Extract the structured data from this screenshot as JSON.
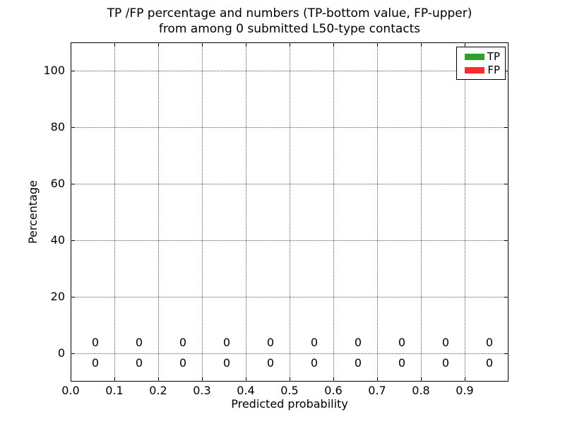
{
  "figure": {
    "background": "#ffffff",
    "axis_color": "#000000",
    "text_color": "#000000"
  },
  "chart_data": {
    "type": "bar",
    "title_lines": [
      "TP /FP percentage and numbers (TP-bottom value, FP-upper)",
      "from among 0 submitted L50-type contacts"
    ],
    "xlabel": "Predicted probability",
    "ylabel": "Percentage",
    "xlim": [
      0.0,
      1.0
    ],
    "ylim": [
      -10,
      110
    ],
    "xticks": [
      "0.0",
      "0.1",
      "0.2",
      "0.3",
      "0.4",
      "0.5",
      "0.6",
      "0.7",
      "0.8",
      "0.9"
    ],
    "yticks": [
      0,
      20,
      40,
      60,
      80,
      100
    ],
    "grid": true,
    "grid_style": "dotted",
    "grid_color": "#555555",
    "bin_centers": [
      0.05,
      0.15,
      0.25,
      0.35,
      0.45,
      0.55,
      0.65,
      0.75,
      0.85,
      0.95
    ],
    "series": [
      {
        "name": "TP",
        "color": "#2ca02c",
        "values": [
          0,
          0,
          0,
          0,
          0,
          0,
          0,
          0,
          0,
          0
        ],
        "label_row": "below-axis"
      },
      {
        "name": "FP",
        "color": "#fb2b2b",
        "values": [
          0,
          0,
          0,
          0,
          0,
          0,
          0,
          0,
          0,
          0
        ],
        "label_row": "above-axis"
      }
    ],
    "legend": {
      "position": "upper right",
      "entries": [
        {
          "label": "TP",
          "color": "#2ca02c"
        },
        {
          "label": "FP",
          "color": "#fb2b2b"
        }
      ]
    }
  }
}
